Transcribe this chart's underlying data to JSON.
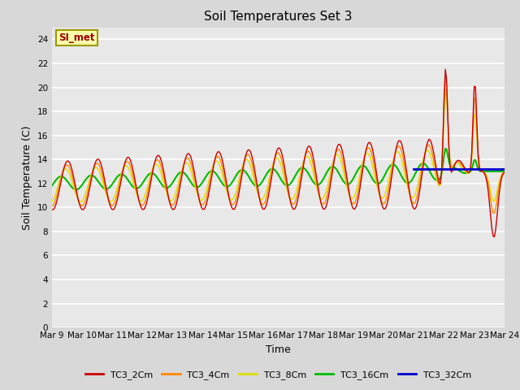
{
  "title": "Soil Temperatures Set 3",
  "xlabel": "Time",
  "ylabel": "Soil Temperature (C)",
  "ylim": [
    0,
    25
  ],
  "yticks": [
    0,
    2,
    4,
    6,
    8,
    10,
    12,
    14,
    16,
    18,
    20,
    22,
    24
  ],
  "series_colors": {
    "TC3_2Cm": "#cc0000",
    "TC3_4Cm": "#ff8800",
    "TC3_8Cm": "#dddd00",
    "TC3_16Cm": "#00bb00",
    "TC3_32Cm": "#0000cc"
  },
  "annotation_text": "SI_met",
  "annotation_box_color": "#ffffaa",
  "annotation_border_color": "#999900",
  "x_tick_labels": [
    "Mar 9",
    "Mar 10",
    "Mar 11",
    "Mar 12",
    "Mar 13",
    "Mar 14",
    "Mar 15",
    "Mar 16",
    "Mar 17",
    "Mar 18",
    "Mar 19",
    "Mar 20",
    "Mar 21",
    "Mar 22",
    "Mar 23",
    "Mar 24"
  ],
  "fig_bg": "#d8d8d8",
  "ax_bg": "#e8e8e8"
}
